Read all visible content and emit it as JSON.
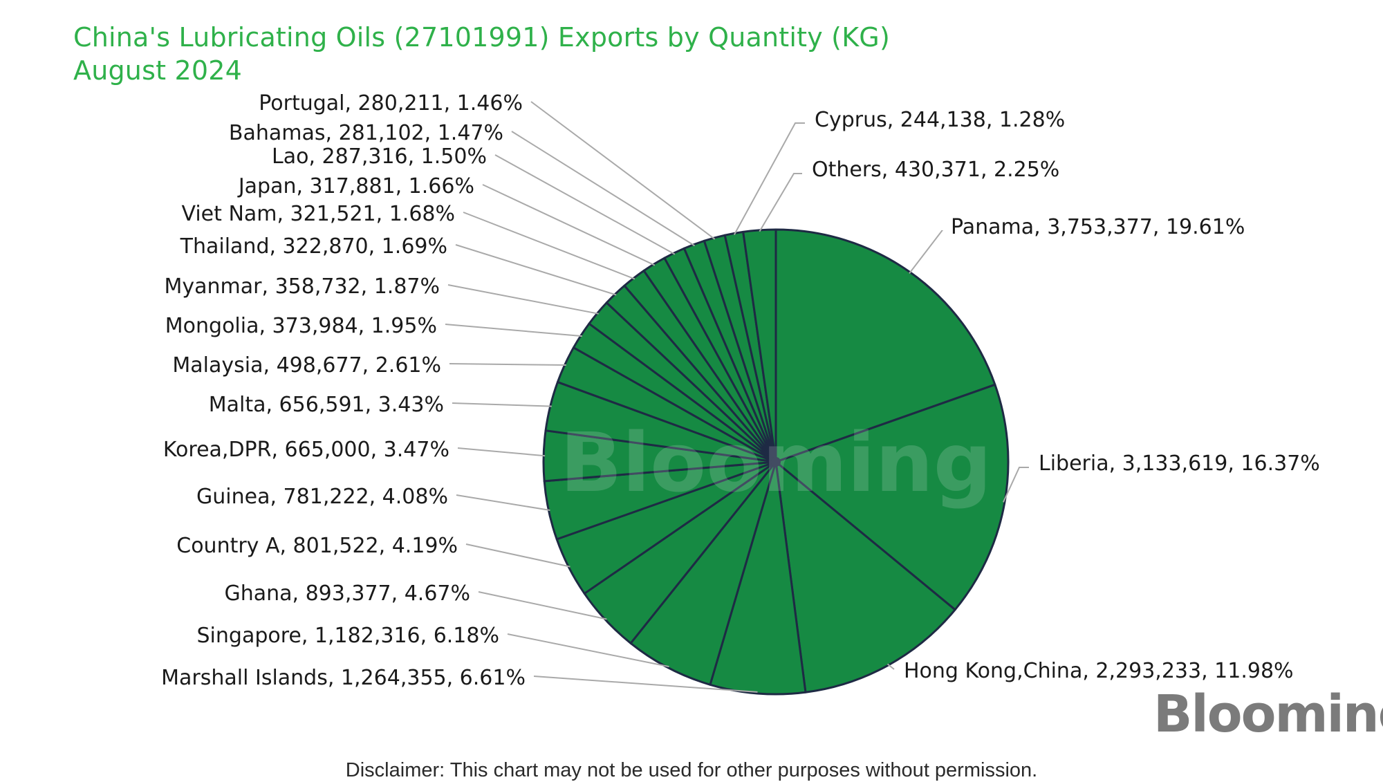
{
  "title_line1": "China's Lubricating Oils (27101991) Exports by Quantity (KG)",
  "title_line2": "August 2024",
  "watermark": "Blooming",
  "logo_text": "Blooming",
  "disclaimer": "Disclaimer: This chart may not be used for other purposes without permission.",
  "colors": {
    "title": "#2fb14a",
    "slice_fill": "#168a43",
    "slice_stroke": "#1e2a44",
    "leader_line": "#a9a9a9",
    "label_text": "#1a1a1a",
    "logo": "#7b7b7b"
  },
  "chart_data": {
    "type": "pie",
    "title": "China's Lubricating Oils (27101991) Exports by Quantity (KG) August 2024",
    "slices": [
      {
        "label": "Panama",
        "value": 3753377,
        "value_text": "3,753,377",
        "percent": "19.61%"
      },
      {
        "label": "Liberia",
        "value": 3133619,
        "value_text": "3,133,619",
        "percent": "16.37%"
      },
      {
        "label": "Hong Kong,China",
        "value": 2293233,
        "value_text": "2,293,233",
        "percent": "11.98%"
      },
      {
        "label": "Marshall Islands",
        "value": 1264355,
        "value_text": "1,264,355",
        "percent": "6.61%"
      },
      {
        "label": "Singapore",
        "value": 1182316,
        "value_text": "1,182,316",
        "percent": "6.18%"
      },
      {
        "label": "Ghana",
        "value": 893377,
        "value_text": "893,377",
        "percent": "4.67%"
      },
      {
        "label": "Country A",
        "value": 801522,
        "value_text": "801,522",
        "percent": "4.19%"
      },
      {
        "label": "Guinea",
        "value": 781222,
        "value_text": "781,222",
        "percent": "4.08%"
      },
      {
        "label": "Korea,DPR",
        "value": 665000,
        "value_text": "665,000",
        "percent": "3.47%"
      },
      {
        "label": "Malta",
        "value": 656591,
        "value_text": "656,591",
        "percent": "3.43%"
      },
      {
        "label": "Malaysia",
        "value": 498677,
        "value_text": "498,677",
        "percent": "2.61%"
      },
      {
        "label": "Mongolia",
        "value": 373984,
        "value_text": "373,984",
        "percent": "1.95%"
      },
      {
        "label": "Myanmar",
        "value": 358732,
        "value_text": "358,732",
        "percent": "1.87%"
      },
      {
        "label": "Thailand",
        "value": 322870,
        "value_text": "322,870",
        "percent": "1.69%"
      },
      {
        "label": "Viet Nam",
        "value": 321521,
        "value_text": "321,521",
        "percent": "1.68%"
      },
      {
        "label": "Japan",
        "value": 317881,
        "value_text": "317,881",
        "percent": "1.66%"
      },
      {
        "label": "Lao",
        "value": 287316,
        "value_text": "287,316",
        "percent": "1.50%"
      },
      {
        "label": "Bahamas",
        "value": 281102,
        "value_text": "281,102",
        "percent": "1.47%"
      },
      {
        "label": "Portugal",
        "value": 280211,
        "value_text": "280,211",
        "percent": "1.46%"
      },
      {
        "label": "Cyprus",
        "value": 244138,
        "value_text": "244,138",
        "percent": "1.28%"
      },
      {
        "label": "Others",
        "value": 430371,
        "value_text": "430,371",
        "percent": "2.25%"
      }
    ],
    "legend": "none"
  }
}
